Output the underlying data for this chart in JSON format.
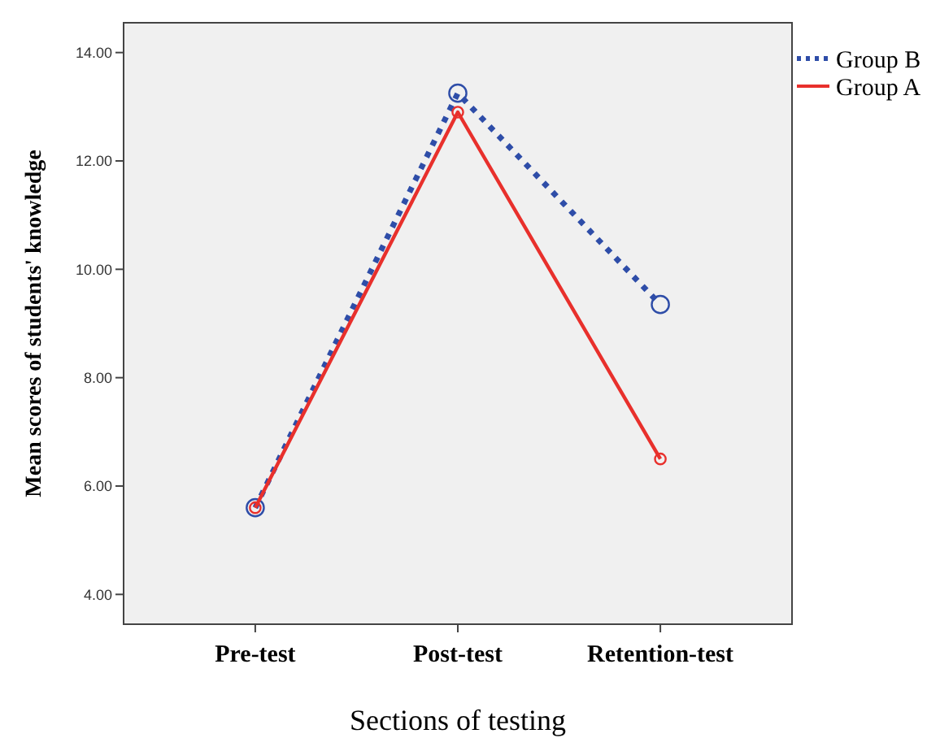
{
  "chart_data": {
    "type": "line",
    "xlabel": "Sections of testing",
    "ylabel": "Mean scores of students' knowledge",
    "categories": [
      "Pre-test",
      "Post-test",
      "Retention-test"
    ],
    "series": [
      {
        "name": "Group B",
        "color": "#2e4da8",
        "values": [
          5.6,
          13.25,
          9.35
        ],
        "line_style": "dotted"
      },
      {
        "name": "Group A",
        "color": "#e8302c",
        "values": [
          5.6,
          12.9,
          6.5
        ],
        "line_style": "solid"
      }
    ],
    "ylim": [
      3.45,
      14.55
    ],
    "yticks": [
      {
        "value": 4,
        "label": "4.00"
      },
      {
        "value": 6,
        "label": "6.00"
      },
      {
        "value": 8,
        "label": "8.00"
      },
      {
        "value": 10,
        "label": "10.00"
      },
      {
        "value": 12,
        "label": "12.00"
      },
      {
        "value": 14,
        "label": "14.00"
      }
    ],
    "marker": "circle",
    "grid": false,
    "legend": "top right"
  }
}
